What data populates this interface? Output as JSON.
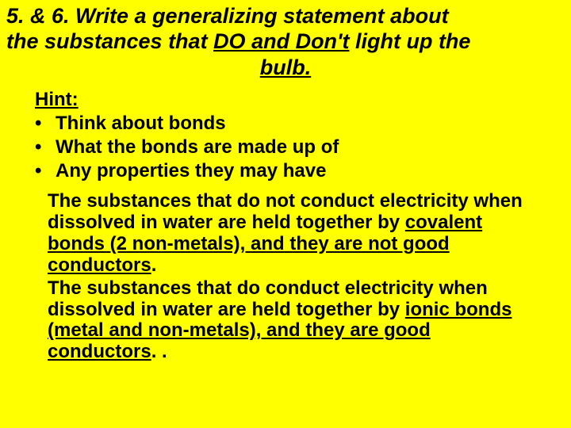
{
  "background_color": "#ffff00",
  "text_color": "#000000",
  "font_family": "Comic Sans MS",
  "title": {
    "line1": "5. & 6. Write a generalizing statement about",
    "line2_pre": "the substances that ",
    "line2_u": "DO and Don't",
    "line2_post": " light up the",
    "line3": "bulb.",
    "fontsize": 27,
    "style": "bold italic"
  },
  "hint": {
    "label": "Hint:",
    "bullets": [
      "Think about bonds",
      "What the bonds are made up of",
      "Any properties they may have"
    ],
    "fontsize": 24
  },
  "body": {
    "p1_pre": "The substances that do not conduct electricity when dissolved in water are held together by ",
    "p1_u": "covalent bonds (2 non-metals), and they are not good conductors",
    "p1_post": ".",
    "p2_pre": " The substances that do conduct electricity when dissolved in water are held together by ",
    "p2_u": "ionic bonds (metal and non-metals), and they are good conductors",
    "p2_post": ". .",
    "fontsize": 24
  }
}
